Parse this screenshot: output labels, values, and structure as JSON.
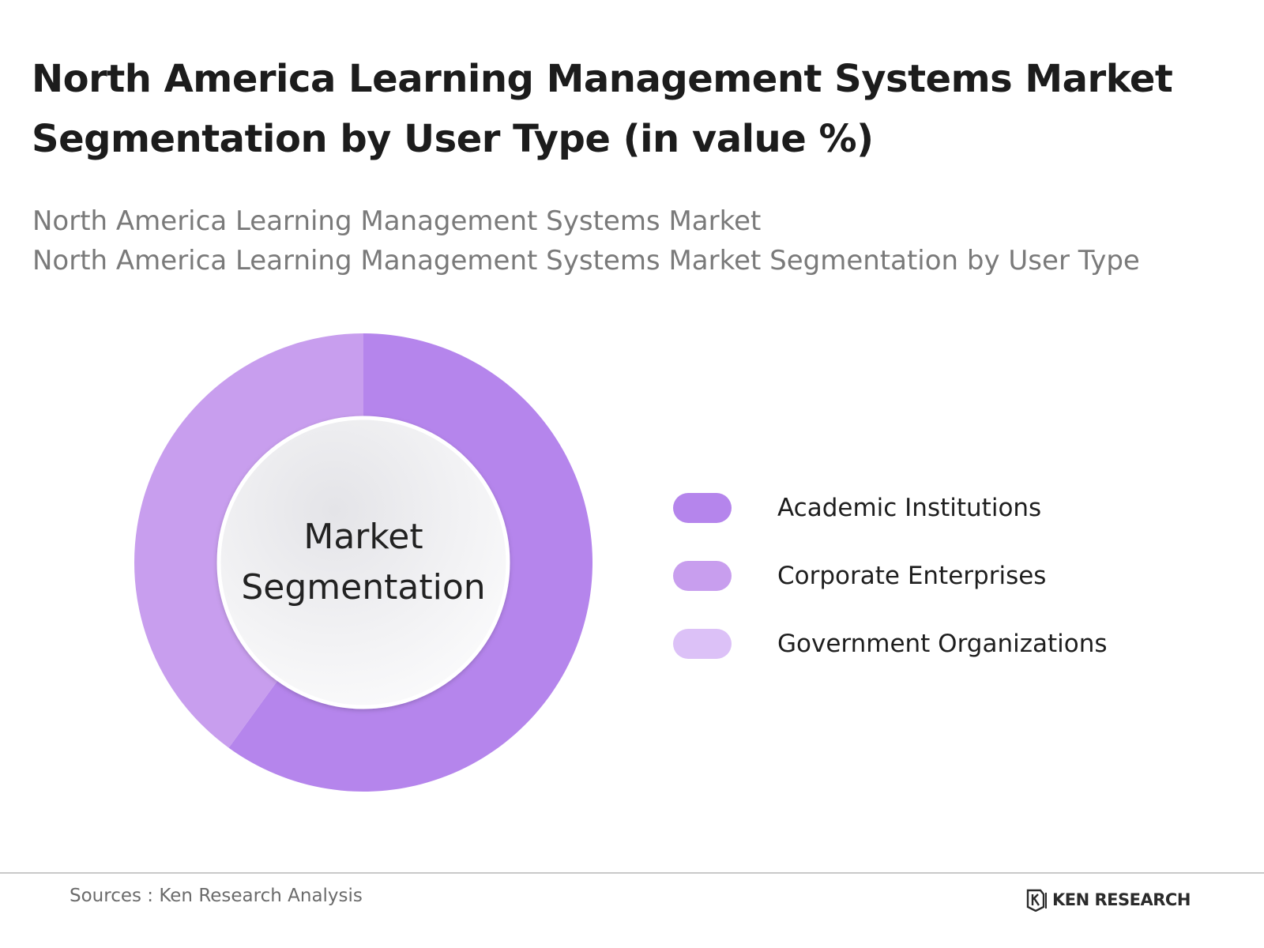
{
  "title": "North America Learning Management Systems Market Segmentation by User Type (in value %)",
  "subtitle_lines": [
    "North America Learning Management Systems Market",
    "North America Learning Management Systems Market Segmentation by User Type"
  ],
  "center_label": {
    "line1": "Market",
    "line2": "Segmentation"
  },
  "chart_data": {
    "type": "pie",
    "style": "donut",
    "categories": [
      "Academic Institutions",
      "Corporate Enterprises",
      "Government Organizations"
    ],
    "values": [
      60,
      40,
      0
    ],
    "colors": [
      "#b585ec",
      "#c89eee",
      "#dcc1f7"
    ],
    "legend_position": "right",
    "center_text": "Market Segmentation"
  },
  "legend": [
    {
      "label": "Academic Institutions",
      "color": "#b585ec"
    },
    {
      "label": "Corporate Enterprises",
      "color": "#c89eee"
    },
    {
      "label": "Government Organizations",
      "color": "#dcc1f7"
    }
  ],
  "footer": {
    "sources": "Sources : Ken Research Analysis",
    "brand": "KEN RESEARCH",
    "brand_icon": "ken-research-logo-icon"
  }
}
